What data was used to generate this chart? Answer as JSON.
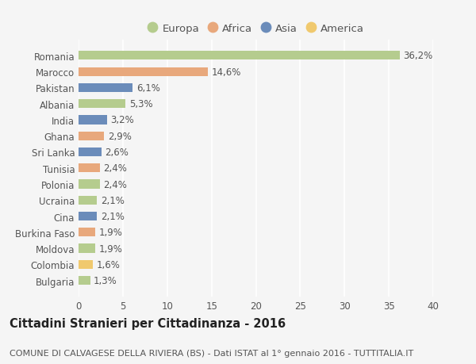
{
  "countries": [
    "Romania",
    "Marocco",
    "Pakistan",
    "Albania",
    "India",
    "Ghana",
    "Sri Lanka",
    "Tunisia",
    "Polonia",
    "Ucraina",
    "Cina",
    "Burkina Faso",
    "Moldova",
    "Colombia",
    "Bulgaria"
  ],
  "values": [
    36.2,
    14.6,
    6.1,
    5.3,
    3.2,
    2.9,
    2.6,
    2.4,
    2.4,
    2.1,
    2.1,
    1.9,
    1.9,
    1.6,
    1.3
  ],
  "labels": [
    "36,2%",
    "14,6%",
    "6,1%",
    "5,3%",
    "3,2%",
    "2,9%",
    "2,6%",
    "2,4%",
    "2,4%",
    "2,1%",
    "2,1%",
    "1,9%",
    "1,9%",
    "1,6%",
    "1,3%"
  ],
  "continents": [
    "Europa",
    "Africa",
    "Asia",
    "Europa",
    "Asia",
    "Africa",
    "Asia",
    "Africa",
    "Europa",
    "Europa",
    "Asia",
    "Africa",
    "Europa",
    "America",
    "Europa"
  ],
  "colors": {
    "Europa": "#b5cc8e",
    "Africa": "#e8a87c",
    "Asia": "#6b8cba",
    "America": "#f0c96e"
  },
  "xlim": [
    0,
    40
  ],
  "xticks": [
    0,
    5,
    10,
    15,
    20,
    25,
    30,
    35,
    40
  ],
  "title": "Cittadini Stranieri per Cittadinanza - 2016",
  "subtitle": "COMUNE DI CALVAGESE DELLA RIVIERA (BS) - Dati ISTAT al 1° gennaio 2016 - TUTTITALIA.IT",
  "background_color": "#f5f5f5",
  "grid_color": "#ffffff",
  "bar_height": 0.55,
  "label_fontsize": 8.5,
  "tick_fontsize": 8.5,
  "title_fontsize": 10.5,
  "subtitle_fontsize": 8
}
